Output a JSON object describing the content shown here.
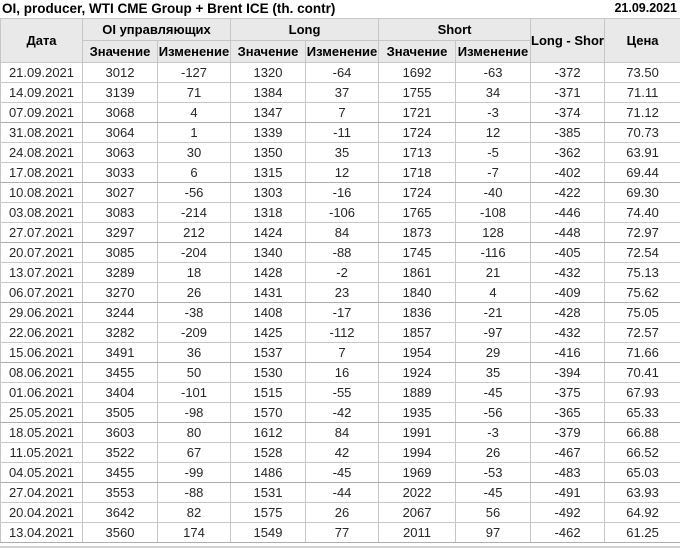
{
  "title": "OI, producer, WTI CME Group + Brent ICE (th. contr)",
  "report_date": "21.09.2021",
  "colors": {
    "positive": "#009a00",
    "negative": "#cc1100",
    "header_bg": "#e9e9e9",
    "border": "#c6c6c6"
  },
  "table": {
    "group_headers": {
      "date": "Дата",
      "oi_group": "OI управляющих",
      "long_group": "Long",
      "short_group": "Short",
      "long_short": "Long - Short",
      "price": "Цена"
    },
    "sub_headers": [
      "Значение",
      "Изменение",
      "Значение",
      "Изменение",
      "Значение",
      "Изменение"
    ],
    "rows": [
      {
        "date": "21.09.2021",
        "oi": 3012,
        "oi_chg": -127,
        "long": 1320,
        "long_chg": -64,
        "short": 1692,
        "short_chg": -63,
        "long_short": -372,
        "price": "73.50"
      },
      {
        "date": "14.09.2021",
        "oi": 3139,
        "oi_chg": 71,
        "long": 1384,
        "long_chg": 37,
        "short": 1755,
        "short_chg": 34,
        "long_short": -371,
        "price": "71.11"
      },
      {
        "date": "07.09.2021",
        "oi": 3068,
        "oi_chg": 4,
        "long": 1347,
        "long_chg": 7,
        "short": 1721,
        "short_chg": -3,
        "long_short": -374,
        "price": "71.12"
      },
      {
        "date": "31.08.2021",
        "oi": 3064,
        "oi_chg": 1,
        "long": 1339,
        "long_chg": -11,
        "short": 1724,
        "short_chg": 12,
        "long_short": -385,
        "price": "70.73"
      },
      {
        "date": "24.08.2021",
        "oi": 3063,
        "oi_chg": 30,
        "long": 1350,
        "long_chg": 35,
        "short": 1713,
        "short_chg": -5,
        "long_short": -362,
        "price": "63.91"
      },
      {
        "date": "17.08.2021",
        "oi": 3033,
        "oi_chg": 6,
        "long": 1315,
        "long_chg": 12,
        "short": 1718,
        "short_chg": -7,
        "long_short": -402,
        "price": "69.44"
      },
      {
        "date": "10.08.2021",
        "oi": 3027,
        "oi_chg": -56,
        "long": 1303,
        "long_chg": -16,
        "short": 1724,
        "short_chg": -40,
        "long_short": -422,
        "price": "69.30"
      },
      {
        "date": "03.08.2021",
        "oi": 3083,
        "oi_chg": -214,
        "long": 1318,
        "long_chg": -106,
        "short": 1765,
        "short_chg": -108,
        "long_short": -446,
        "price": "74.40"
      },
      {
        "date": "27.07.2021",
        "oi": 3297,
        "oi_chg": 212,
        "long": 1424,
        "long_chg": 84,
        "short": 1873,
        "short_chg": 128,
        "long_short": -448,
        "price": "72.97"
      },
      {
        "date": "20.07.2021",
        "oi": 3085,
        "oi_chg": -204,
        "long": 1340,
        "long_chg": -88,
        "short": 1745,
        "short_chg": -116,
        "long_short": -405,
        "price": "72.54"
      },
      {
        "date": "13.07.2021",
        "oi": 3289,
        "oi_chg": 18,
        "long": 1428,
        "long_chg": -2,
        "short": 1861,
        "short_chg": 21,
        "long_short": -432,
        "price": "75.13"
      },
      {
        "date": "06.07.2021",
        "oi": 3270,
        "oi_chg": 26,
        "long": 1431,
        "long_chg": 23,
        "short": 1840,
        "short_chg": 4,
        "long_short": -409,
        "price": "75.62"
      },
      {
        "date": "29.06.2021",
        "oi": 3244,
        "oi_chg": -38,
        "long": 1408,
        "long_chg": -17,
        "short": 1836,
        "short_chg": -21,
        "long_short": -428,
        "price": "75.05"
      },
      {
        "date": "22.06.2021",
        "oi": 3282,
        "oi_chg": -209,
        "long": 1425,
        "long_chg": -112,
        "short": 1857,
        "short_chg": -97,
        "long_short": -432,
        "price": "72.57"
      },
      {
        "date": "15.06.2021",
        "oi": 3491,
        "oi_chg": 36,
        "long": 1537,
        "long_chg": 7,
        "short": 1954,
        "short_chg": 29,
        "long_short": -416,
        "price": "71.66"
      },
      {
        "date": "08.06.2021",
        "oi": 3455,
        "oi_chg": 50,
        "long": 1530,
        "long_chg": 16,
        "short": 1924,
        "short_chg": 35,
        "long_short": -394,
        "price": "70.41"
      },
      {
        "date": "01.06.2021",
        "oi": 3404,
        "oi_chg": -101,
        "long": 1515,
        "long_chg": -55,
        "short": 1889,
        "short_chg": -45,
        "long_short": -375,
        "price": "67.93"
      },
      {
        "date": "25.05.2021",
        "oi": 3505,
        "oi_chg": -98,
        "long": 1570,
        "long_chg": -42,
        "short": 1935,
        "short_chg": -56,
        "long_short": -365,
        "price": "65.33"
      },
      {
        "date": "18.05.2021",
        "oi": 3603,
        "oi_chg": 80,
        "long": 1612,
        "long_chg": 84,
        "short": 1991,
        "short_chg": -3,
        "long_short": -379,
        "price": "66.88"
      },
      {
        "date": "11.05.2021",
        "oi": 3522,
        "oi_chg": 67,
        "long": 1528,
        "long_chg": 42,
        "short": 1994,
        "short_chg": 26,
        "long_short": -467,
        "price": "66.52"
      },
      {
        "date": "04.05.2021",
        "oi": 3455,
        "oi_chg": -99,
        "long": 1486,
        "long_chg": -45,
        "short": 1969,
        "short_chg": -53,
        "long_short": -483,
        "price": "65.03"
      },
      {
        "date": "27.04.2021",
        "oi": 3553,
        "oi_chg": -88,
        "long": 1531,
        "long_chg": -44,
        "short": 2022,
        "short_chg": -45,
        "long_short": -491,
        "price": "63.93"
      },
      {
        "date": "20.04.2021",
        "oi": 3642,
        "oi_chg": 82,
        "long": 1575,
        "long_chg": 26,
        "short": 2067,
        "short_chg": 56,
        "long_short": -492,
        "price": "64.92"
      },
      {
        "date": "13.04.2021",
        "oi": 3560,
        "oi_chg": 174,
        "long": 1549,
        "long_chg": 77,
        "short": 2011,
        "short_chg": 97,
        "long_short": -462,
        "price": "61.25"
      }
    ]
  }
}
